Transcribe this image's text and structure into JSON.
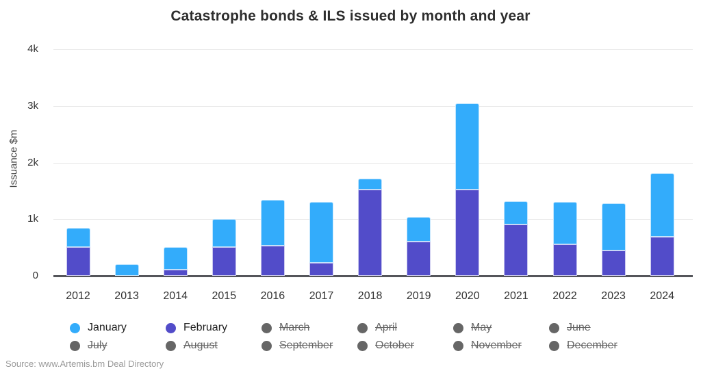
{
  "title": "Catastrophe bonds & ILS issued by month and year",
  "y_axis_title": "Issuance $m",
  "source": "Source: www.Artemis.bm Deal Directory",
  "colors": {
    "january": "#33ACFB",
    "february": "#524CC9",
    "disabled_dot": "#666666",
    "grid": "#E8E8E8",
    "axis_line": "#54555A"
  },
  "chart_data": {
    "type": "bar",
    "stacked": true,
    "title": "Catastrophe bonds & ILS issued by month and year",
    "ylabel": "Issuance $m",
    "xlabel": "",
    "ylim": [
      0,
      4000
    ],
    "grid": true,
    "legend_position": "bottom",
    "yticks": [
      {
        "value": 0,
        "label": "0"
      },
      {
        "value": 1000,
        "label": "1k"
      },
      {
        "value": 2000,
        "label": "2k"
      },
      {
        "value": 3000,
        "label": "3k"
      },
      {
        "value": 4000,
        "label": "4k"
      }
    ],
    "categories": [
      "2012",
      "2013",
      "2014",
      "2015",
      "2016",
      "2017",
      "2018",
      "2019",
      "2020",
      "2021",
      "2022",
      "2023",
      "2024"
    ],
    "series": [
      {
        "name": "February",
        "color": "#524CC9",
        "values": [
          510,
          0,
          110,
          510,
          535,
          230,
          1520,
          610,
          1525,
          910,
          550,
          450,
          690
        ]
      },
      {
        "name": "January",
        "color": "#33ACFB",
        "values": [
          335,
          200,
          400,
          490,
          805,
          1070,
          200,
          425,
          1525,
          410,
          755,
          835,
          1120
        ]
      }
    ],
    "legend": [
      {
        "label": "January",
        "active": true
      },
      {
        "label": "February",
        "active": true
      },
      {
        "label": "March",
        "active": false
      },
      {
        "label": "April",
        "active": false
      },
      {
        "label": "May",
        "active": false
      },
      {
        "label": "June",
        "active": false
      },
      {
        "label": "July",
        "active": false
      },
      {
        "label": "August",
        "active": false
      },
      {
        "label": "September",
        "active": false
      },
      {
        "label": "October",
        "active": false
      },
      {
        "label": "November",
        "active": false
      },
      {
        "label": "December",
        "active": false
      }
    ]
  }
}
